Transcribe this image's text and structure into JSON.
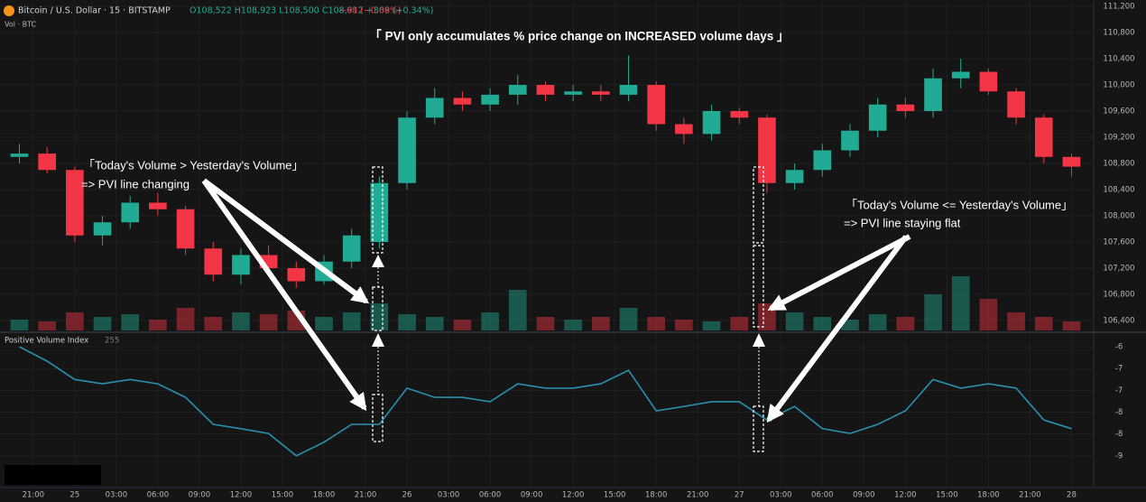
{
  "header": {
    "symbol": "Bitcoin / U.S. Dollar · 15 · BITSTAMP",
    "ohlc": "O108,522 H108,923 L108,500 C108,912 +369 (+0.34%)",
    "change": "−68 (−0.06%)",
    "volume_label": "Vol · BTC",
    "indicator_name": "Positive Volume Index",
    "indicator_length": "255"
  },
  "annotations": {
    "title": "「 PVI only accumulates % price change on INCREASED volume days 」",
    "left_line1": "「Today's Volume > Yesterday's Volume」",
    "left_line2": "=> PVI line changing",
    "right_line1": "「Today's Volume <= Yesterday's Volume」",
    "right_line2": "=> PVI line staying flat"
  },
  "chart_data": [
    {
      "type": "candlestick",
      "up_color": "#22ab94",
      "down_color": "#f23645",
      "x": [
        -1,
        1,
        3,
        5,
        7,
        9,
        11,
        13,
        15,
        17,
        19,
        21,
        23,
        25,
        27,
        29,
        31,
        33,
        35,
        37,
        39,
        41,
        43,
        45,
        47,
        49,
        51,
        53,
        55,
        57,
        59,
        61,
        63,
        65,
        67,
        69,
        71,
        73,
        75
      ],
      "open": [
        108900,
        108950,
        108700,
        107700,
        107900,
        108200,
        108100,
        107500,
        107100,
        107400,
        107200,
        107000,
        107300,
        107600,
        108500,
        109500,
        109800,
        109700,
        109850,
        110000,
        109850,
        109900,
        109850,
        110000,
        109400,
        109250,
        109600,
        109500,
        108500,
        108700,
        109000,
        109300,
        109700,
        109600,
        110100,
        110200,
        109900,
        109500,
        108900
      ],
      "high": [
        109100,
        109050,
        108750,
        108000,
        108300,
        108350,
        108150,
        107600,
        107500,
        107550,
        107300,
        107400,
        107800,
        108600,
        109600,
        109950,
        109900,
        109950,
        110150,
        110050,
        110000,
        110000,
        110450,
        110050,
        109500,
        109700,
        109650,
        109550,
        108800,
        109100,
        109400,
        109800,
        109800,
        110250,
        110400,
        110250,
        109950,
        109550,
        108950
      ],
      "low": [
        108800,
        108650,
        107600,
        107550,
        107800,
        108000,
        107400,
        107000,
        106950,
        107100,
        106900,
        106950,
        107200,
        107500,
        108400,
        109400,
        109600,
        109600,
        109700,
        109750,
        109750,
        109750,
        109750,
        109300,
        109100,
        109150,
        109400,
        108350,
        108400,
        108600,
        108900,
        109200,
        109500,
        109500,
        109950,
        109850,
        109400,
        108800,
        108600
      ],
      "close": [
        108950,
        108700,
        107700,
        107900,
        108200,
        108100,
        107500,
        107100,
        107400,
        107200,
        107000,
        107300,
        107700,
        108500,
        109500,
        109800,
        109700,
        109850,
        110000,
        109850,
        109900,
        109850,
        110000,
        109400,
        109250,
        109600,
        109500,
        108500,
        108700,
        109000,
        109300,
        109700,
        109600,
        110100,
        110200,
        109900,
        109500,
        108900,
        108750
      ],
      "xlim": [
        -2.4,
        76.6
      ],
      "xticks": [
        {
          "value": 0,
          "label": "21:00"
        },
        {
          "value": 3,
          "label": "25"
        },
        {
          "value": 6,
          "label": "03:00"
        },
        {
          "value": 9,
          "label": "06:00"
        },
        {
          "value": 12,
          "label": "09:00"
        },
        {
          "value": 15,
          "label": "12:00"
        },
        {
          "value": 18,
          "label": "15:00"
        },
        {
          "value": 21,
          "label": "18:00"
        },
        {
          "value": 24,
          "label": "21:00"
        },
        {
          "value": 27,
          "label": "26"
        },
        {
          "value": 30,
          "label": "03:00"
        },
        {
          "value": 33,
          "label": "06:00"
        },
        {
          "value": 36,
          "label": "09:00"
        },
        {
          "value": 39,
          "label": "12:00"
        },
        {
          "value": 42,
          "label": "15:00"
        },
        {
          "value": 45,
          "label": "18:00"
        },
        {
          "value": 48,
          "label": "21:00"
        },
        {
          "value": 51,
          "label": "27"
        },
        {
          "value": 54,
          "label": "03:00"
        },
        {
          "value": 57,
          "label": "06:00"
        },
        {
          "value": 60,
          "label": "09:00"
        },
        {
          "value": 63,
          "label": "12:00"
        },
        {
          "value": 66,
          "label": "15:00"
        },
        {
          "value": 69,
          "label": "18:00"
        },
        {
          "value": 72,
          "label": "21:00"
        },
        {
          "value": 75,
          "label": "28"
        }
      ],
      "ylim": [
        106234,
        111297
      ],
      "yticks": [
        {
          "value": 111200,
          "label": "111,200"
        },
        {
          "value": 110800,
          "label": "110,800"
        },
        {
          "value": 110400,
          "label": "110,400"
        },
        {
          "value": 110000,
          "label": "110,000"
        },
        {
          "value": 109600,
          "label": "109,600"
        },
        {
          "value": 109200,
          "label": "109,200"
        },
        {
          "value": 108800,
          "label": "108,800"
        },
        {
          "value": 108400,
          "label": "108,400"
        },
        {
          "value": 108000,
          "label": "108,000"
        },
        {
          "value": 107600,
          "label": "107,600"
        },
        {
          "value": 107200,
          "label": "107,200"
        },
        {
          "value": 106800,
          "label": "106,800"
        },
        {
          "value": 106400,
          "label": "106,400"
        }
      ],
      "grid": true
    },
    {
      "type": "bar",
      "values": [
        12,
        10,
        20,
        15,
        18,
        12,
        25,
        15,
        20,
        18,
        22,
        15,
        20,
        30,
        18,
        15,
        12,
        20,
        45,
        15,
        12,
        15,
        25,
        15,
        12,
        10,
        15,
        30,
        20,
        15,
        12,
        18,
        15,
        40,
        60,
        35,
        20,
        15,
        10
      ],
      "ylim": [
        0,
        100
      ]
    },
    {
      "type": "line",
      "color": "#2a8fb0",
      "values": [
        -6.0,
        -6.33,
        -6.75,
        -6.85,
        -6.75,
        -6.85,
        -7.16,
        -7.78,
        -7.88,
        -7.99,
        -8.5,
        -8.19,
        -7.78,
        -7.78,
        -6.95,
        -7.16,
        -7.16,
        -7.26,
        -6.85,
        -6.95,
        -6.95,
        -6.85,
        -6.54,
        -7.47,
        -7.37,
        -7.26,
        -7.26,
        -7.68,
        -7.37,
        -7.88,
        -7.99,
        -7.78,
        -7.47,
        -6.75,
        -6.95,
        -6.85,
        -6.95,
        -7.68,
        -7.88
      ],
      "ylim": [
        -9.23,
        -5.75
      ],
      "yticks": [
        -6,
        {
          "value": -6.5,
          "label": "-7"
        },
        -7,
        {
          "value": -7.5,
          "label": "-8"
        },
        -8,
        {
          "value": -8.5,
          "label": "-9"
        }
      ],
      "grid": true
    }
  ]
}
